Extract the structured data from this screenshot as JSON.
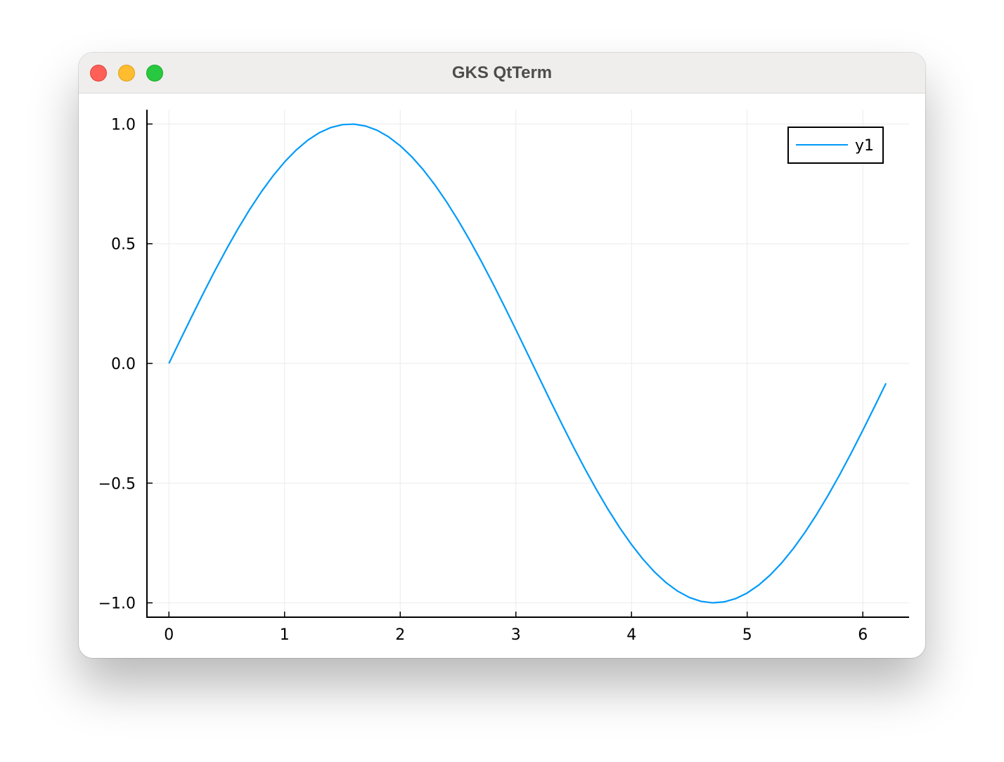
{
  "window": {
    "title": "GKS QtTerm"
  },
  "chart_data": {
    "type": "line",
    "title": "",
    "xlabel": "",
    "ylabel": "",
    "xlim": [
      -0.19,
      6.4
    ],
    "ylim": [
      -1.06,
      1.06
    ],
    "x_ticks": [
      0,
      1,
      2,
      3,
      4,
      5,
      6
    ],
    "x_tick_labels": [
      "0",
      "1",
      "2",
      "3",
      "4",
      "5",
      "6"
    ],
    "y_ticks": [
      1.0,
      0.5,
      0.0,
      -0.5,
      -1.0
    ],
    "y_tick_labels": [
      "1.0",
      "0.5",
      "0.0",
      "−0.5",
      "−1.0"
    ],
    "grid": true,
    "legend": {
      "position": "top-right",
      "entries": [
        "y1"
      ]
    },
    "series": [
      {
        "name": "y1",
        "color": "#009af9",
        "function": "sin(x)",
        "x_range": [
          0,
          6.2
        ],
        "step": 0.1
      }
    ]
  },
  "colors": {
    "line": "#009af9",
    "axis": "#000000",
    "grid": "#ebebeb",
    "titlebar": "#efeeec"
  }
}
